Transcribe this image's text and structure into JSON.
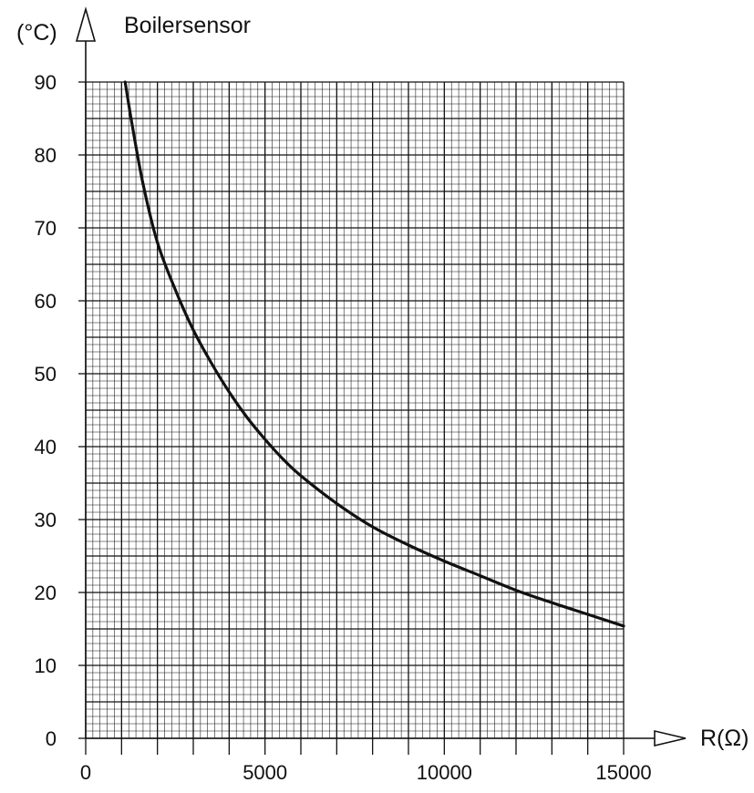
{
  "chart_data": {
    "type": "line",
    "title": "Boilersensor",
    "xlabel": "R(Ω)",
    "ylabel": "(°C)",
    "xlim": [
      0,
      15000
    ],
    "ylim": [
      0,
      90
    ],
    "xticks": [
      "0",
      "5000",
      "10000",
      "15000"
    ],
    "yticks": [
      "0",
      "10",
      "20",
      "30",
      "40",
      "50",
      "60",
      "70",
      "80",
      "90"
    ],
    "grid": true,
    "series": [
      {
        "x": [
          1100,
          1300,
          1600,
          2000,
          2500,
          3000,
          3500,
          4000,
          4500,
          5000,
          5500,
          6000,
          7000,
          8000,
          9000,
          10000,
          11000,
          12000,
          13000,
          14000,
          15000
        ],
        "y": [
          90,
          84,
          76,
          68,
          61.5,
          56,
          51.5,
          47.5,
          44,
          41,
          38.3,
          36,
          32.2,
          29,
          26.5,
          24.3,
          22.3,
          20.3,
          18.6,
          17,
          15.4
        ]
      }
    ]
  }
}
